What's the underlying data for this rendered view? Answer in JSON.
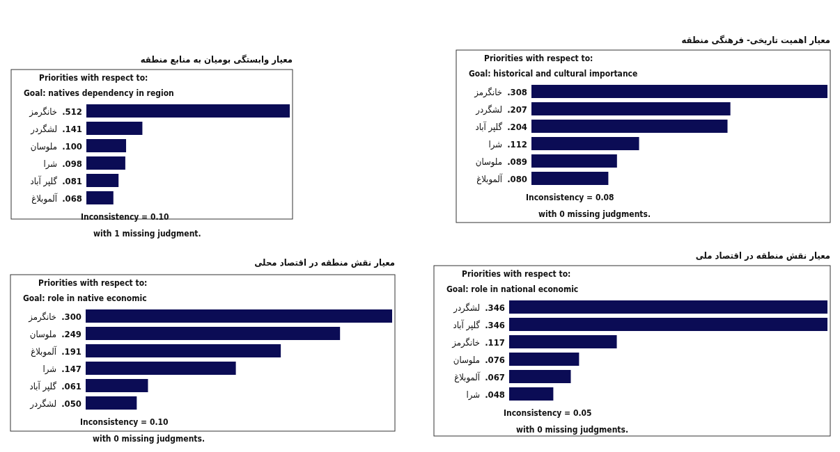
{
  "chart_data": [
    {
      "type": "bar",
      "orientation": "horizontal",
      "title": "معیار وابستگی بومیان به منابع منطقه",
      "subtitle": "Priorities with respect to:",
      "annotations": [
        "Goal:  natives dependency in region",
        "Inconsistency = 0.10",
        "with 1  missing judgment."
      ],
      "categories": [
        "خانگرمز",
        "لشگردر",
        "ملوسان",
        "شرا",
        "گلپر آباد",
        "آلموبلاغ"
      ],
      "values": [
        0.512,
        0.141,
        0.1,
        0.098,
        0.081,
        0.068
      ],
      "value_labels": [
        ".512",
        ".141",
        ".100",
        ".098",
        ".081",
        ".068"
      ],
      "color": "#0b0c55"
    },
    {
      "type": "bar",
      "orientation": "horizontal",
      "title": "معیار اهمیت تاریخی- فرهنگی منطقه",
      "subtitle": "Priorities with respect to:",
      "annotations": [
        "Goal: historical and cultural importance",
        "Inconsistency = 0.08",
        "with 0  missing judgments."
      ],
      "categories": [
        "خانگرمز",
        "لشگردر",
        "گلپر آباد",
        "شرا",
        "ملوسان",
        "آلموبلاغ"
      ],
      "values": [
        0.308,
        0.207,
        0.204,
        0.112,
        0.089,
        0.08
      ],
      "value_labels": [
        ".308",
        ".207",
        ".204",
        ".112",
        ".089",
        ".080"
      ],
      "color": "#0b0c55"
    },
    {
      "type": "bar",
      "orientation": "horizontal",
      "title": "معیار نقش منطقه در اقتصاد محلی",
      "subtitle": "Priorities with respect to:",
      "annotations": [
        "Goal:  role in native economic",
        "Inconsistency = 0.10",
        "with 0  missing judgments."
      ],
      "categories": [
        "خانگرمز",
        "ملوسان",
        "آلموبلاغ",
        "شرا",
        "گلپر آباد",
        "لشگردر"
      ],
      "values": [
        0.3,
        0.249,
        0.191,
        0.147,
        0.061,
        0.05
      ],
      "value_labels": [
        ".300",
        ".249",
        ".191",
        ".147",
        ".061",
        ".050"
      ],
      "color": "#0b0c55"
    },
    {
      "type": "bar",
      "orientation": "horizontal",
      "title": "معیار نقش منطقه در اقتصاد ملی",
      "subtitle": "Priorities with respect to:",
      "annotations": [
        "Goal: role in  national economic",
        "Inconsistency = 0.05",
        "with 0  missing judgments."
      ],
      "categories": [
        "لشگردر",
        "گلپر آباد",
        "خانگرمز",
        "ملوسان",
        "آلموبلاغ",
        "شرا"
      ],
      "values": [
        0.346,
        0.346,
        0.117,
        0.076,
        0.067,
        0.048
      ],
      "value_labels": [
        ".346",
        ".346",
        ".117",
        ".076",
        ".067",
        ".048"
      ],
      "color": "#0b0c55"
    }
  ]
}
